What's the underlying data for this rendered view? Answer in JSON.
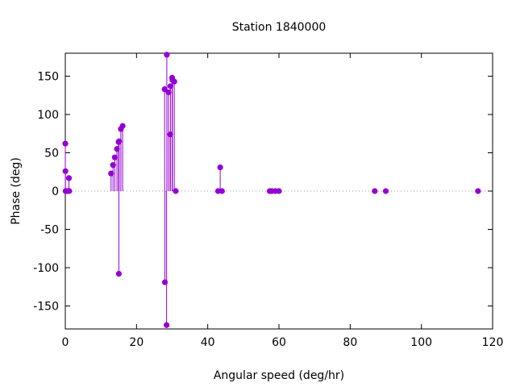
{
  "chart_data": {
    "type": "scatter",
    "style": "impulse-stem",
    "title": "Station 1840000",
    "xlabel": "Angular speed (deg/hr)",
    "ylabel": "Phase (deg)",
    "xlim": [
      0,
      120
    ],
    "ylim": [
      -180,
      180
    ],
    "xticks": [
      0,
      20,
      40,
      60,
      80,
      100,
      120
    ],
    "yticks": [
      -150,
      -100,
      -50,
      0,
      50,
      100,
      150
    ],
    "zero_line": "dotted",
    "grid": false,
    "series": [
      {
        "color": "#9400d3",
        "points": [
          {
            "x": 0.0,
            "y": 62
          },
          {
            "x": 0.04,
            "y": 26
          },
          {
            "x": 0.08,
            "y": 0
          },
          {
            "x": 0.55,
            "y": 0
          },
          {
            "x": 1.02,
            "y": 17
          },
          {
            "x": 1.1,
            "y": 0
          },
          {
            "x": 12.85,
            "y": 23
          },
          {
            "x": 13.4,
            "y": 34
          },
          {
            "x": 13.9,
            "y": 44
          },
          {
            "x": 14.5,
            "y": 55
          },
          {
            "x": 14.96,
            "y": 64
          },
          {
            "x": 15.04,
            "y": -108
          },
          {
            "x": 15.1,
            "y": 65
          },
          {
            "x": 15.6,
            "y": 81
          },
          {
            "x": 16.1,
            "y": 85
          },
          {
            "x": 27.9,
            "y": 133
          },
          {
            "x": 27.97,
            "y": -119
          },
          {
            "x": 28.44,
            "y": -175
          },
          {
            "x": 28.51,
            "y": 178
          },
          {
            "x": 28.98,
            "y": 129
          },
          {
            "x": 29.46,
            "y": 74
          },
          {
            "x": 29.53,
            "y": 137
          },
          {
            "x": 30.0,
            "y": 148
          },
          {
            "x": 30.08,
            "y": 145
          },
          {
            "x": 30.6,
            "y": 143
          },
          {
            "x": 31.0,
            "y": 0
          },
          {
            "x": 42.9,
            "y": 0
          },
          {
            "x": 43.5,
            "y": 31
          },
          {
            "x": 44.0,
            "y": 0
          },
          {
            "x": 57.4,
            "y": 0
          },
          {
            "x": 58.0,
            "y": 0
          },
          {
            "x": 59.0,
            "y": 0
          },
          {
            "x": 60.0,
            "y": 0
          },
          {
            "x": 86.9,
            "y": 0
          },
          {
            "x": 90.0,
            "y": 0
          },
          {
            "x": 115.9,
            "y": 0
          }
        ]
      }
    ]
  }
}
